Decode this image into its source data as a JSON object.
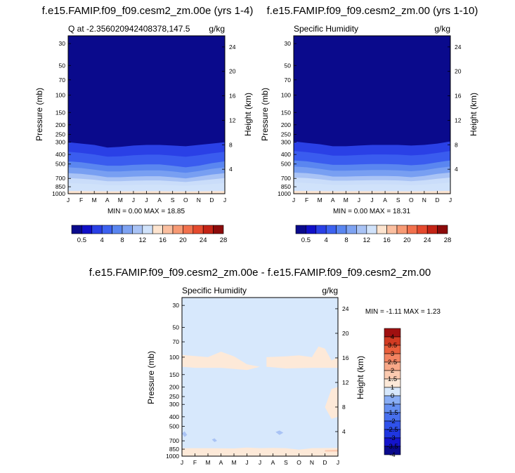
{
  "colors": {
    "seq": [
      "#0a0a8c",
      "#1010c8",
      "#2a40e6",
      "#3d62f0",
      "#5a86f0",
      "#7ea3f2",
      "#a9c3f5",
      "#d0e2fa",
      "#fde4cf",
      "#fbbfa0",
      "#f79a74",
      "#f2714d",
      "#e54a2e",
      "#c42416",
      "#8c0b0b"
    ],
    "diff": [
      "#0a0a8c",
      "#1414cc",
      "#1f36e0",
      "#3052ea",
      "#4870ef",
      "#6690f2",
      "#8aaef5",
      "#d7e8fc",
      "#fde9d8",
      "#fbcab0",
      "#f8a888",
      "#f38462",
      "#ea5f3c",
      "#d23b22",
      "#a01010"
    ],
    "diff_bg": "#d7e8fc",
    "diff_pos": "#fde9d8",
    "diff_pos2": "#fbcab0",
    "diff_neg": "#a9c3f5"
  },
  "panels": {
    "top_left": {
      "title": "f.e15.FAMIP.f09_f09.cesm2_zm.00e (yrs 1-4)",
      "subtitle_left": "Q at -2.356020942408378,147.5",
      "subtitle_right": "g/kg",
      "ylabel": "Pressure (mb)",
      "y2label": "Height (km)",
      "stats": "MIN =   0.00 MAX =  18.85"
    },
    "top_right": {
      "title": "f.e15.FAMIP.f09_f09.cesm2_zm.00 (yrs 1-10)",
      "subtitle_left": "Specific Humidity",
      "subtitle_right": "g/kg",
      "ylabel": "Pressure (mb)",
      "y2label": "Height (km)",
      "stats": "MIN =   0.00 MAX =  18.31"
    },
    "bottom": {
      "title": "f.e15.FAMIP.f09_f09.cesm2_zm.00e - f.e15.FAMIP.f09_f09.cesm2_zm.00",
      "subtitle_left": "Specific Humidity",
      "subtitle_right": "g/kg",
      "ylabel": "Pressure (mb)",
      "y2label": "Height (km)",
      "stats": "MIN = -1.11 MAX =   1.23"
    }
  },
  "chart_data": [
    {
      "type": "heatmap",
      "panel": "top_left",
      "title": "f.e15.FAMIP.f09_f09.cesm2_zm.00e (yrs 1-4)",
      "subtitle": "Q at -2.356020942408378,147.5",
      "units": "g/kg",
      "x_ticks": [
        "J",
        "F",
        "M",
        "A",
        "M",
        "J",
        "J",
        "A",
        "S",
        "O",
        "N",
        "D",
        "J"
      ],
      "y_ticks_pressure": [
        "30",
        "50",
        "70",
        "100",
        "150",
        "200",
        "250",
        "300",
        "400",
        "500",
        "700",
        "850",
        "1000"
      ],
      "y_ticks_height": [
        "24",
        "20",
        "16",
        "12",
        "8",
        "4"
      ],
      "ylabel": "Pressure (mb)",
      "y2label": "Height (km)",
      "ylim": [
        1000,
        25
      ],
      "min": 0.0,
      "max": 18.85,
      "contour_pressure_levels_by_month": {
        "levels": [
          0.5,
          4,
          8,
          12,
          16
        ],
        "p": [
          [
            300,
            310,
            320,
            340,
            335,
            325,
            320,
            320,
            325,
            330,
            320,
            310,
            300
          ],
          [
            470,
            480,
            500,
            520,
            520,
            510,
            505,
            505,
            520,
            540,
            520,
            490,
            470
          ],
          [
            620,
            630,
            650,
            680,
            680,
            670,
            665,
            665,
            680,
            700,
            670,
            640,
            620
          ],
          [
            780,
            790,
            800,
            820,
            820,
            815,
            810,
            810,
            820,
            830,
            815,
            800,
            780
          ],
          [
            940,
            942,
            945,
            948,
            948,
            946,
            945,
            945,
            948,
            950,
            947,
            944,
            940
          ]
        ]
      }
    },
    {
      "type": "heatmap",
      "panel": "top_right",
      "title": "f.e15.FAMIP.f09_f09.cesm2_zm.00 (yrs 1-10)",
      "subtitle": "Specific Humidity",
      "units": "g/kg",
      "x_ticks": [
        "J",
        "F",
        "M",
        "A",
        "M",
        "J",
        "J",
        "A",
        "S",
        "O",
        "N",
        "D",
        "J"
      ],
      "y_ticks_pressure": [
        "30",
        "50",
        "70",
        "100",
        "150",
        "200",
        "250",
        "300",
        "400",
        "500",
        "700",
        "850",
        "1000"
      ],
      "y_ticks_height": [
        "24",
        "20",
        "16",
        "12",
        "8",
        "4"
      ],
      "ylabel": "Pressure (mb)",
      "y2label": "Height (km)",
      "ylim": [
        1000,
        25
      ],
      "min": 0.0,
      "max": 18.31,
      "contour_pressure_levels_by_month": {
        "levels": [
          0.5,
          4,
          8,
          12,
          16
        ],
        "p": [
          [
            295,
            305,
            315,
            330,
            330,
            325,
            320,
            320,
            320,
            325,
            320,
            310,
            295
          ],
          [
            460,
            470,
            490,
            510,
            510,
            505,
            500,
            500,
            505,
            515,
            505,
            480,
            460
          ],
          [
            610,
            620,
            640,
            670,
            670,
            665,
            660,
            660,
            665,
            680,
            660,
            630,
            610
          ],
          [
            770,
            780,
            795,
            815,
            815,
            810,
            805,
            805,
            810,
            820,
            810,
            790,
            770
          ],
          [
            938,
            940,
            943,
            946,
            946,
            945,
            944,
            944,
            946,
            948,
            945,
            942,
            938
          ]
        ]
      }
    },
    {
      "type": "heatmap",
      "panel": "bottom",
      "title": "f.e15.FAMIP.f09_f09.cesm2_zm.00e - f.e15.FAMIP.f09_f09.cesm2_zm.00",
      "subtitle": "Specific Humidity",
      "units": "g/kg",
      "x_ticks": [
        "J",
        "F",
        "M",
        "A",
        "M",
        "J",
        "J",
        "A",
        "S",
        "O",
        "N",
        "D",
        "J"
      ],
      "y_ticks_pressure": [
        "30",
        "50",
        "70",
        "100",
        "150",
        "200",
        "250",
        "300",
        "400",
        "500",
        "700",
        "850",
        "1000"
      ],
      "y_ticks_height": [
        "24",
        "20",
        "16",
        "12",
        "8",
        "4"
      ],
      "ylabel": "Pressure (mb)",
      "y2label": "Height (km)",
      "ylim": [
        1000,
        25
      ],
      "min": -1.11,
      "max": 1.23,
      "background_range": [
        -1,
        0
      ],
      "positive_regions": [
        {
          "range": [
            0,
            1
          ],
          "month_pressure": [
            [
              0,
              95
            ],
            [
              2,
              100
            ],
            [
              3,
              88
            ],
            [
              4,
              98
            ],
            [
              5,
              118
            ],
            [
              6,
              125
            ],
            [
              5,
              135
            ],
            [
              3,
              128
            ],
            [
              1,
              128
            ],
            [
              0,
              125
            ]
          ]
        },
        {
          "range": [
            0,
            1
          ],
          "month_pressure": [
            [
              6.5,
              100
            ],
            [
              8,
              98
            ],
            [
              9,
              96
            ],
            [
              10,
              100
            ],
            [
              10.5,
              78
            ],
            [
              11,
              82
            ],
            [
              11.5,
              108
            ],
            [
              12,
              100
            ],
            [
              12,
              128
            ],
            [
              10,
              128
            ],
            [
              8,
              130
            ],
            [
              6.5,
              125
            ]
          ]
        },
        {
          "range": [
            0,
            1
          ],
          "month_pressure": [
            [
              11,
              320
            ],
            [
              11.5,
              210
            ],
            [
              12,
              200
            ],
            [
              12,
              400
            ],
            [
              11.5,
              420
            ]
          ]
        },
        {
          "range": [
            0,
            1
          ],
          "month_pressure": [
            [
              0,
              830
            ],
            [
              2,
              830
            ],
            [
              4,
              835
            ],
            [
              5,
              820
            ],
            [
              6,
              830
            ],
            [
              7,
              825
            ],
            [
              8,
              830
            ],
            [
              9,
              860
            ],
            [
              10,
              830
            ],
            [
              12,
              825
            ],
            [
              12,
              1000
            ],
            [
              0,
              1000
            ]
          ]
        },
        {
          "range": [
            1,
            1.5
          ],
          "month_pressure": [
            [
              11,
              870
            ],
            [
              12,
              860
            ],
            [
              12,
              900
            ],
            [
              11,
              900
            ]
          ]
        }
      ],
      "negative_regions": [
        {
          "range": [
            -1.5,
            -1
          ],
          "month_pressure": [
            [
              0,
              590
            ],
            [
              0.2,
              560
            ],
            [
              0.4,
              610
            ],
            [
              0.2,
              640
            ]
          ]
        },
        {
          "range": [
            -1.5,
            -1
          ],
          "month_pressure": [
            [
              7.2,
              570
            ],
            [
              7.5,
              550
            ],
            [
              7.8,
              580
            ],
            [
              7.5,
              610
            ]
          ]
        },
        {
          "range": [
            -1.5,
            -1
          ],
          "month_pressure": [
            [
              2.3,
              680
            ],
            [
              2.5,
              660
            ],
            [
              2.7,
              700
            ],
            [
              2.5,
              720
            ]
          ]
        }
      ]
    }
  ],
  "colorbars": {
    "top_left": {
      "labels": [
        "0.5",
        "4",
        "8",
        "12",
        "16",
        "20",
        "24",
        "28"
      ]
    },
    "top_right": {
      "labels": [
        "0.5",
        "4",
        "8",
        "12",
        "16",
        "20",
        "24",
        "28"
      ]
    },
    "bottom": {
      "labels": [
        "4",
        "3.5",
        "3",
        "2.5",
        "2",
        "1.5",
        "1",
        "0",
        "-1",
        "-1.5",
        "-2",
        "-2.5",
        "-3",
        "-3.5",
        "-4"
      ]
    }
  }
}
